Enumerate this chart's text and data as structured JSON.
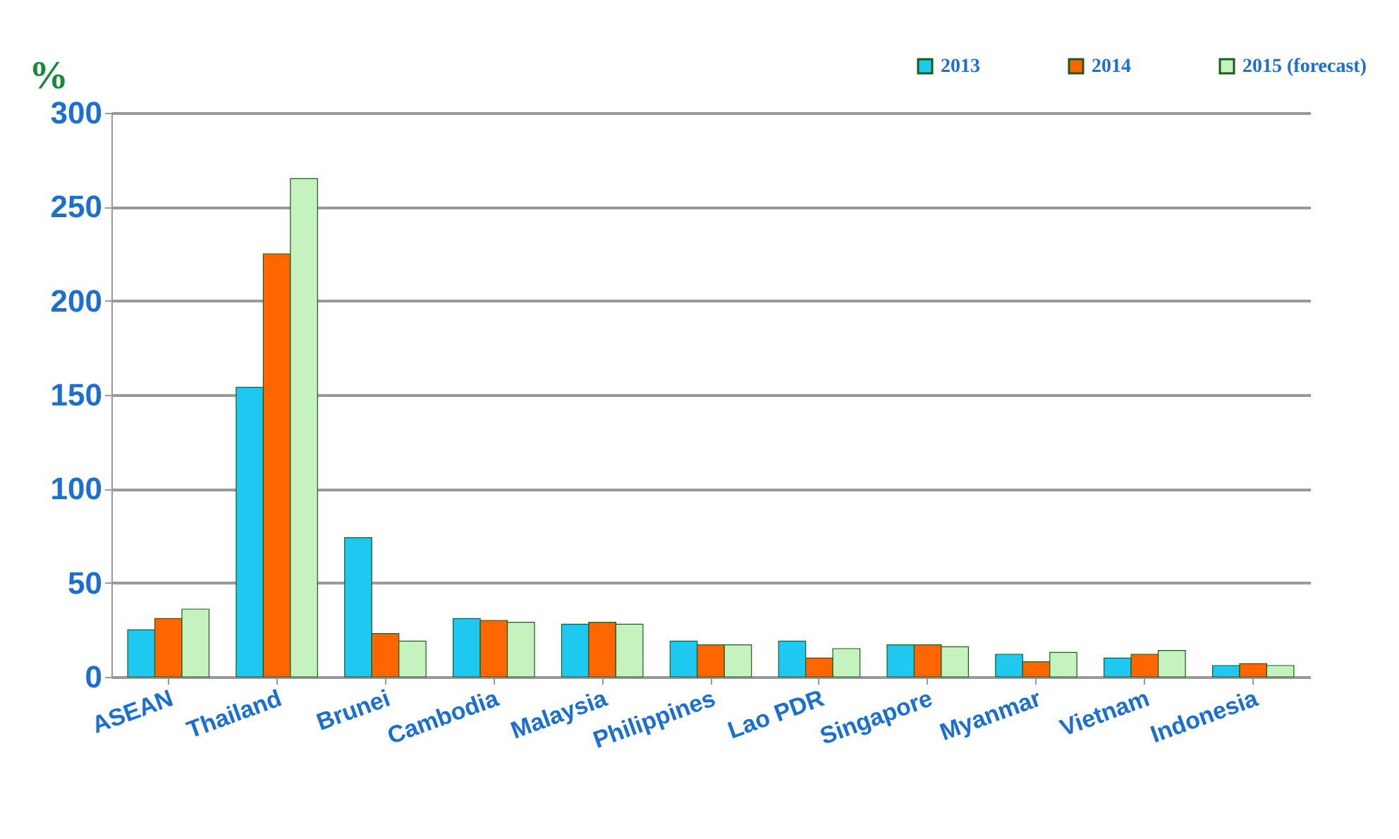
{
  "chart_data": {
    "type": "bar",
    "ylabel": "%",
    "categories": [
      "ASEAN",
      "Thailand",
      "Brunei",
      "Cambodia",
      "Malaysia",
      "Philippines",
      "Lao PDR",
      "Singapore",
      "Myanmar",
      "Vietnam",
      "Indonesia"
    ],
    "series": [
      {
        "name": "2013",
        "color": "#1ec8f0",
        "values": [
          25,
          154,
          74,
          31,
          28,
          19,
          19,
          17,
          12,
          10,
          6
        ]
      },
      {
        "name": "2014",
        "color": "#ff6600",
        "values": [
          31,
          225,
          23,
          30,
          29,
          17,
          10,
          17,
          8,
          12,
          7
        ]
      },
      {
        "name": "2015 (forecast)",
        "color": "#c6f2c0",
        "values": [
          36,
          265,
          19,
          29,
          28,
          17,
          15,
          16,
          13,
          14,
          6
        ]
      }
    ],
    "ylim": [
      0,
      300
    ],
    "yticks": [
      0,
      50,
      100,
      150,
      200,
      250,
      300
    ],
    "grid": "y",
    "legend": "top right"
  }
}
